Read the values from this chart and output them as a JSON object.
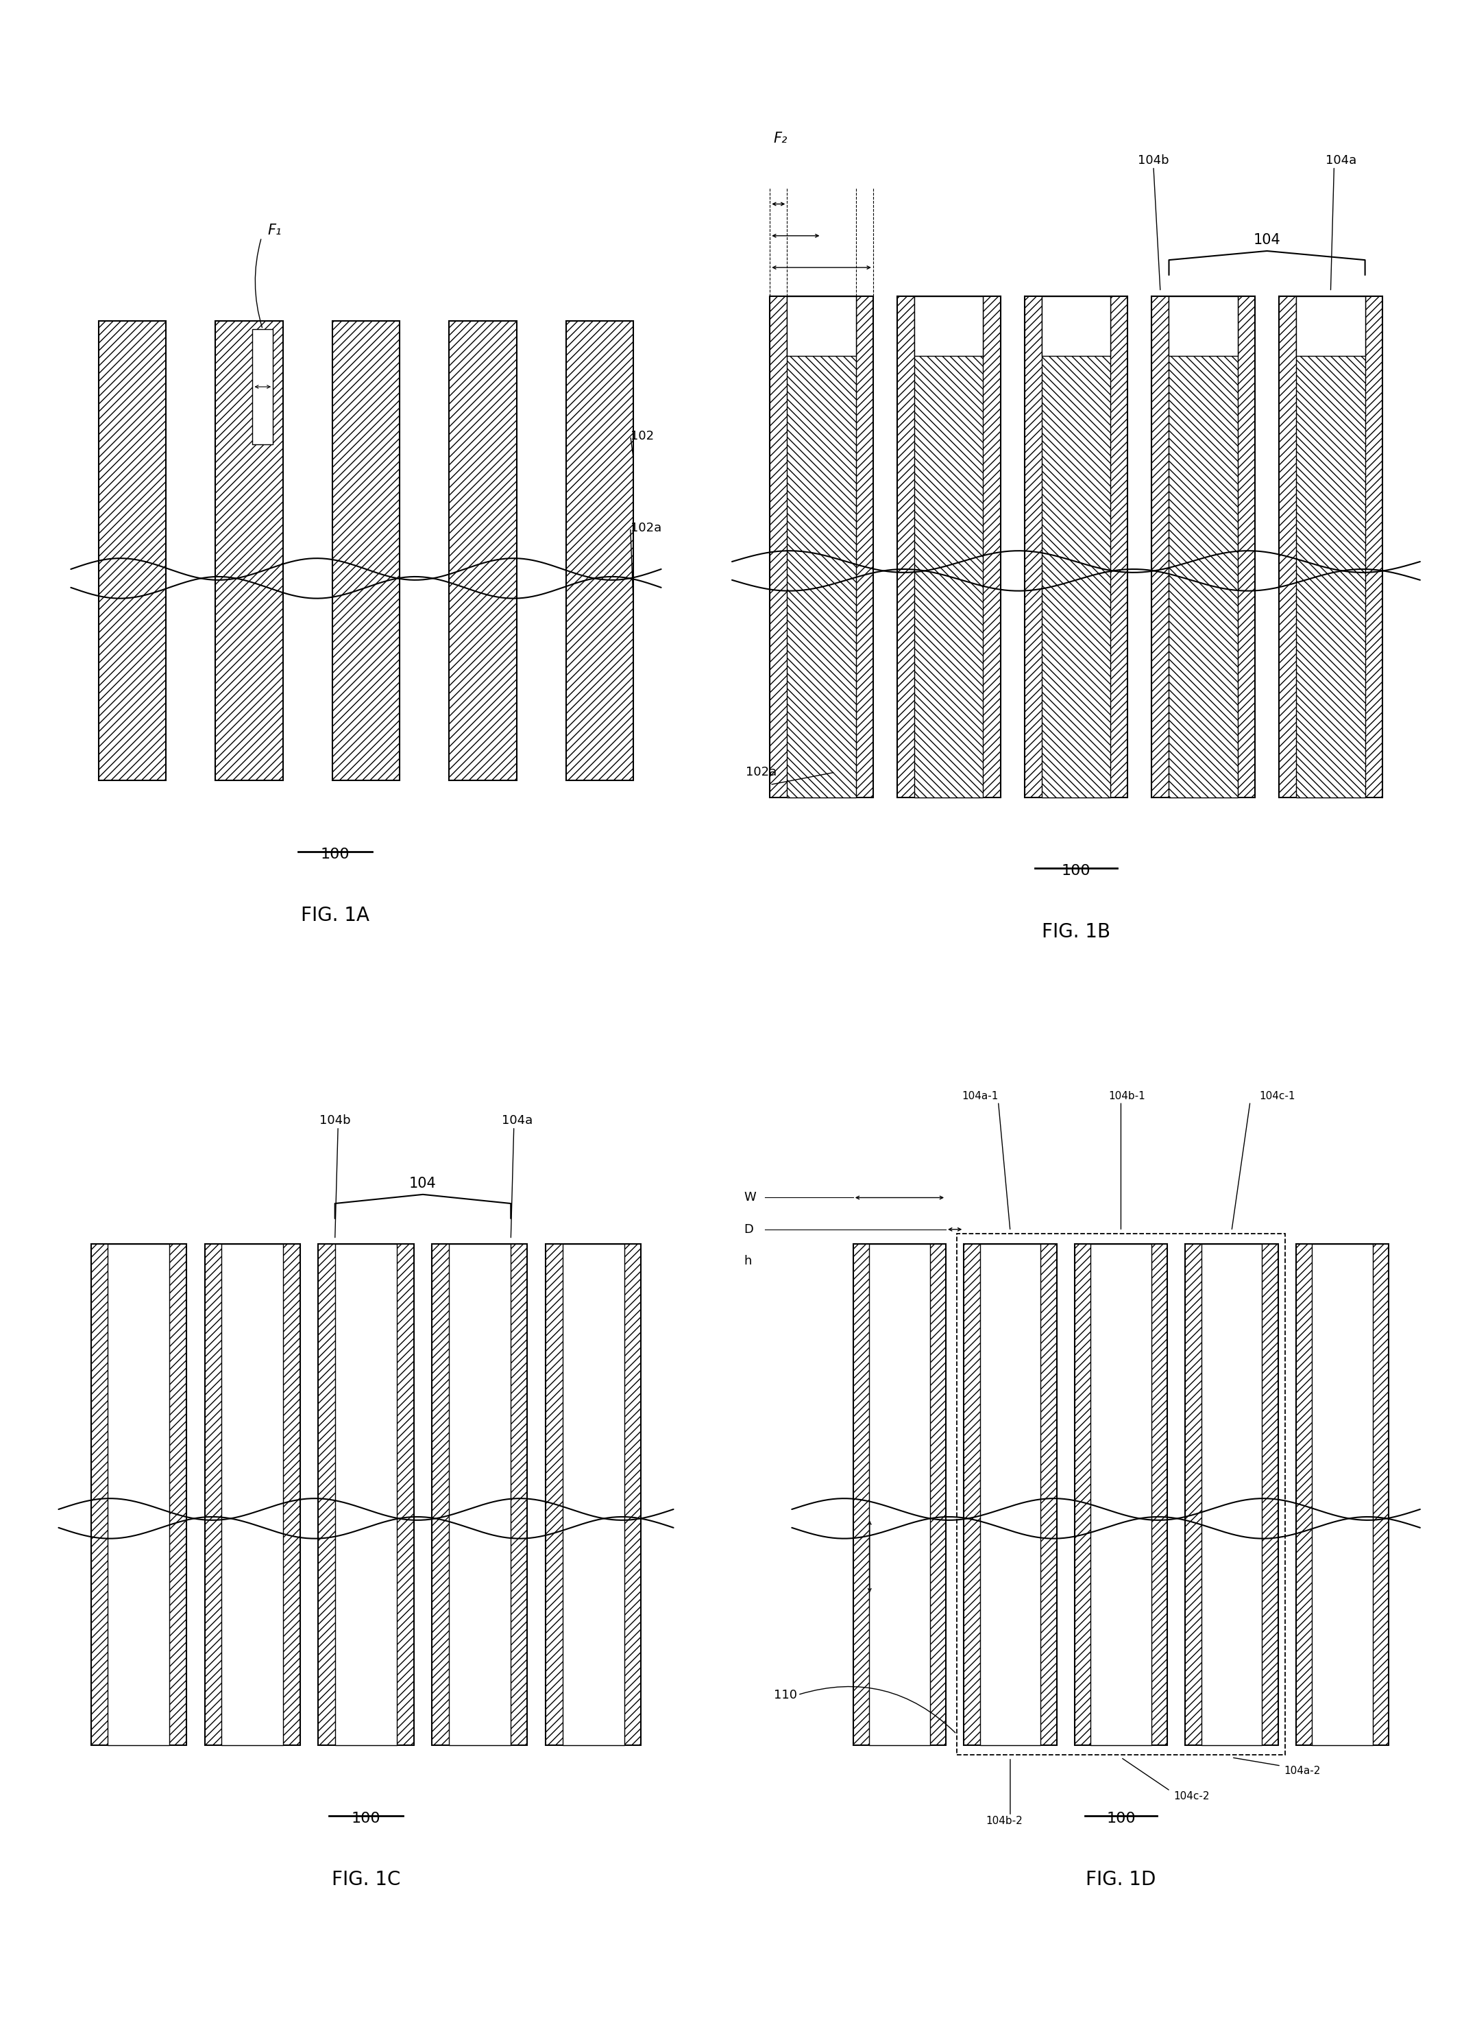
{
  "bg_color": "#ffffff",
  "fig_width": 21.36,
  "fig_height": 29.72,
  "label_100": "100",
  "label_102": "102",
  "label_102a": "102a",
  "label_104": "104",
  "label_104a": "104a",
  "label_104b": "104b",
  "label_F1": "F₁",
  "label_F2": "F₂",
  "label_W": "W",
  "label_D": "D",
  "label_h": "h",
  "label_110": "110",
  "label_104a1": "104a-1",
  "label_104b1": "104b-1",
  "label_104c1": "104c-1",
  "label_104b2": "104b-2",
  "label_104c2": "104c-2",
  "label_104a2": "104a-2",
  "fig1a_label": "FIG. 1A",
  "fig1b_label": "FIG. 1B",
  "fig1c_label": "FIG. 1C",
  "fig1d_label": "FIG. 1D"
}
